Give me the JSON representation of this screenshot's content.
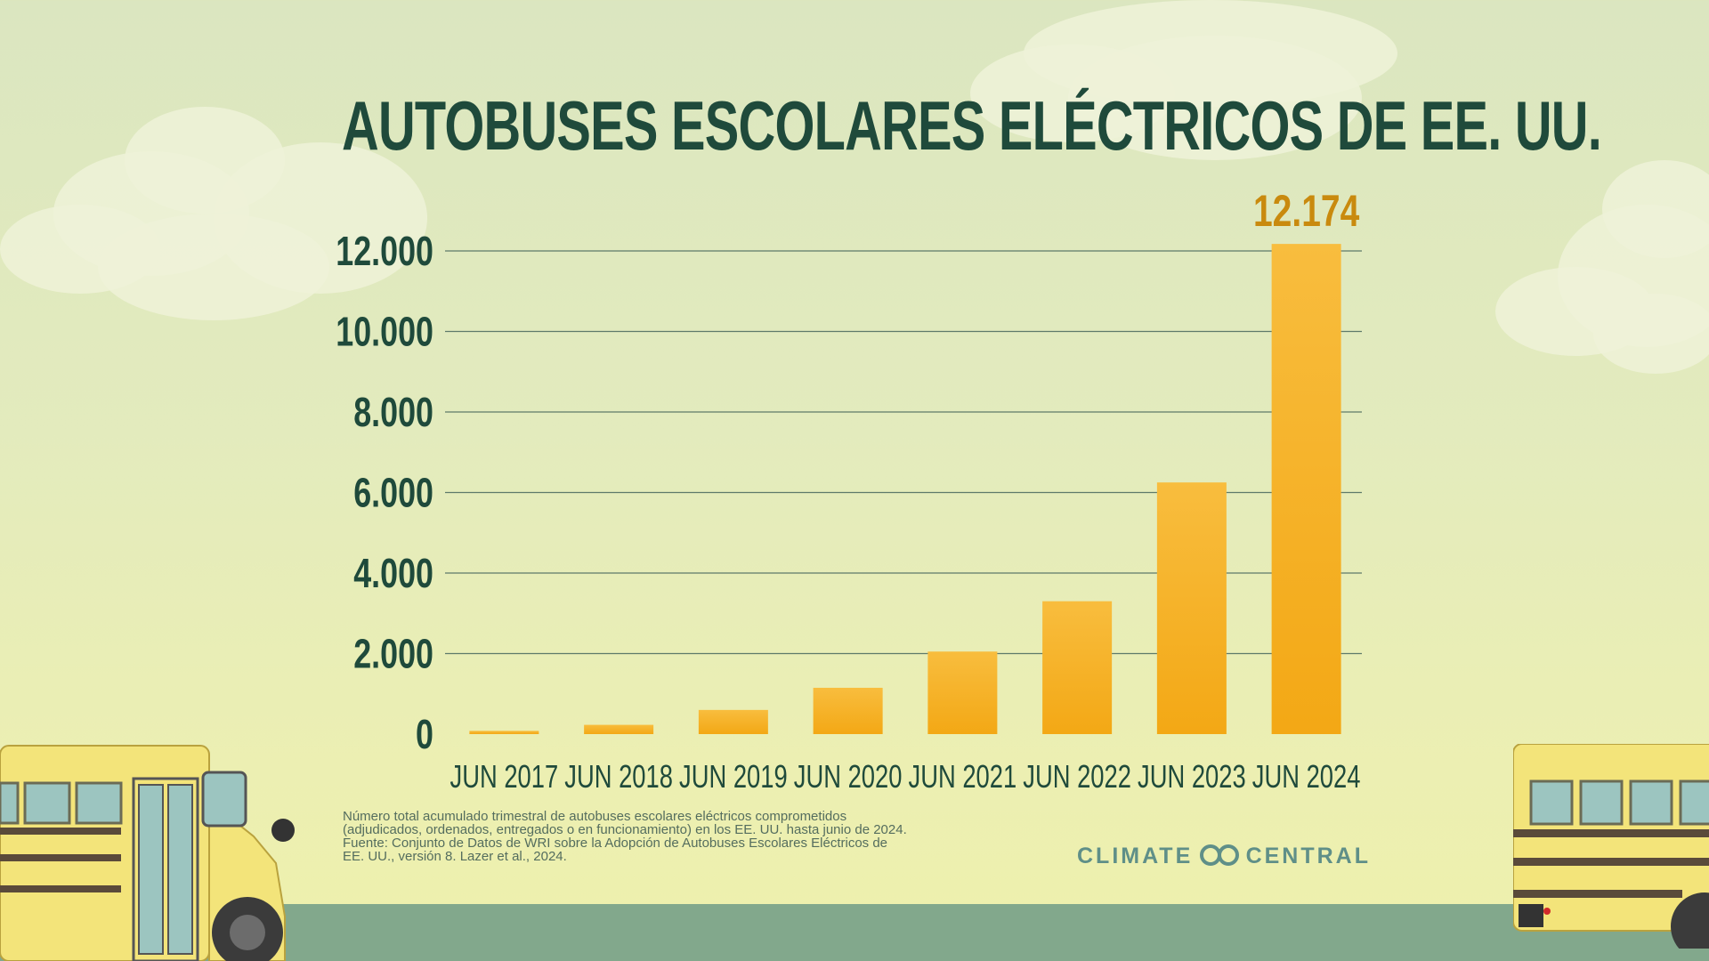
{
  "title": "AUTOBUSES ESCOLARES ELÉCTRICOS DE EE. UU.",
  "footnote_lines": [
    "Número total acumulado trimestral de autobuses escolares eléctricos comprometidos",
    "(adjudicados, ordenados, entregados o en funcionamiento) en los EE. UU. hasta junio de 2024.",
    "Fuente: Conjunto de Datos de WRI sobre la Adopción de Autobuses Escolares Eléctricos de",
    "EE. UU., versión 8. Lazer et al., 2024."
  ],
  "logo": {
    "left_text": "CLIMATE",
    "right_text": "CENTRAL",
    "icon": "climate-central-rings-icon"
  },
  "colors": {
    "bar": "#f3a815",
    "highlight_label": "#c98a0e",
    "title": "#1f4a3b",
    "axis_text": "#1f4a3b",
    "gridline": "#5e7a6a"
  },
  "chart_data": {
    "type": "bar",
    "title": "AUTOBUSES ESCOLARES ELÉCTRICOS DE EE. UU.",
    "categories": [
      "JUN 2017",
      "JUN 2018",
      "JUN 2019",
      "JUN 2020",
      "JUN 2021",
      "JUN 2022",
      "JUN 2023",
      "JUN 2024"
    ],
    "values": [
      80,
      230,
      600,
      1150,
      2050,
      3300,
      6250,
      12174
    ],
    "ylim": [
      0,
      12000
    ],
    "yticks": [
      0,
      2000,
      4000,
      6000,
      8000,
      10000,
      12000
    ],
    "ytick_labels": [
      "0",
      "2.000",
      "4.000",
      "6.000",
      "8.000",
      "10.000",
      "12.000"
    ],
    "xlabel": "",
    "ylabel": "",
    "grid": true,
    "annotations": [
      {
        "category": "JUN 2024",
        "text": "12.174"
      }
    ]
  }
}
